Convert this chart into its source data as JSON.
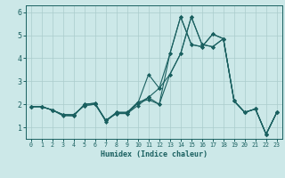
{
  "title": "",
  "xlabel": "Humidex (Indice chaleur)",
  "ylabel": "",
  "xlim": [
    -0.5,
    23.5
  ],
  "ylim": [
    0.5,
    6.3
  ],
  "yticks": [
    1,
    2,
    3,
    4,
    5,
    6
  ],
  "xticks": [
    0,
    1,
    2,
    3,
    4,
    5,
    6,
    7,
    8,
    9,
    10,
    11,
    12,
    13,
    14,
    15,
    16,
    17,
    18,
    19,
    20,
    21,
    22,
    23
  ],
  "bg_color": "#cce8e8",
  "line_color": "#1a6060",
  "grid_color": "#aacccc",
  "lines": [
    [
      1.9,
      1.9,
      1.75,
      1.5,
      1.5,
      2.0,
      2.05,
      1.25,
      1.65,
      1.65,
      2.1,
      2.2,
      2.0,
      4.2,
      5.8,
      4.6,
      4.5,
      5.05,
      4.85,
      2.15,
      1.65,
      1.8,
      0.7,
      1.65
    ],
    [
      1.9,
      1.9,
      1.75,
      1.55,
      1.5,
      2.0,
      2.05,
      1.3,
      1.65,
      1.65,
      2.05,
      3.3,
      2.7,
      4.2,
      5.8,
      4.6,
      4.5,
      5.05,
      4.85,
      2.15,
      1.65,
      1.8,
      0.7,
      1.65
    ],
    [
      1.9,
      1.9,
      1.75,
      1.55,
      1.55,
      1.95,
      2.0,
      1.3,
      1.6,
      1.6,
      2.05,
      2.3,
      2.7,
      3.3,
      4.2,
      5.8,
      4.6,
      4.5,
      4.85,
      2.15,
      1.65,
      1.8,
      0.7,
      1.65
    ],
    [
      1.9,
      1.9,
      1.75,
      1.55,
      1.55,
      1.95,
      2.0,
      1.3,
      1.6,
      1.6,
      1.95,
      2.3,
      2.0,
      3.3,
      4.2,
      5.8,
      4.6,
      4.5,
      4.85,
      2.15,
      1.65,
      1.8,
      0.7,
      1.65
    ]
  ],
  "marker": "D",
  "marker_size": 2.0,
  "line_width": 0.8,
  "tick_fontsize_x": 4.8,
  "tick_fontsize_y": 6.0,
  "xlabel_fontsize": 6.0
}
